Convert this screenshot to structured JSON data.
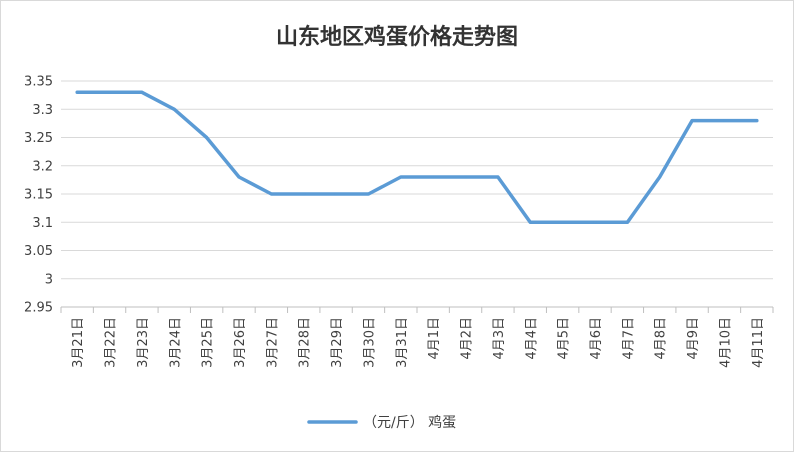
{
  "chart_data": {
    "type": "line",
    "title": "山东地区鸡蛋价格走势图",
    "categories": [
      "3月21日",
      "3月22日",
      "3月23日",
      "3月24日",
      "3月25日",
      "3月26日",
      "3月27日",
      "3月28日",
      "3月29日",
      "3月30日",
      "3月31日",
      "4月1日",
      "4月2日",
      "4月3日",
      "4月4日",
      "4月5日",
      "4月6日",
      "4月7日",
      "4月8日",
      "4月9日",
      "4月10日",
      "4月11日"
    ],
    "series": [
      {
        "name": "（元/斤） 鸡蛋",
        "color": "#5b9bd5",
        "values": [
          3.33,
          3.33,
          3.33,
          3.3,
          3.25,
          3.18,
          3.15,
          3.15,
          3.15,
          3.15,
          3.18,
          3.18,
          3.18,
          3.18,
          3.1,
          3.1,
          3.1,
          3.1,
          3.18,
          3.28,
          3.28,
          3.28
        ]
      }
    ],
    "ylim": [
      2.95,
      3.35
    ],
    "yticks": [
      "2.95",
      "3",
      "3.05",
      "3.1",
      "3.15",
      "3.2",
      "3.25",
      "3.3",
      "3.35"
    ],
    "ytick_values": [
      2.95,
      3.0,
      3.05,
      3.1,
      3.15,
      3.2,
      3.25,
      3.3,
      3.35
    ],
    "grid": true,
    "legend": "bottom-center"
  }
}
